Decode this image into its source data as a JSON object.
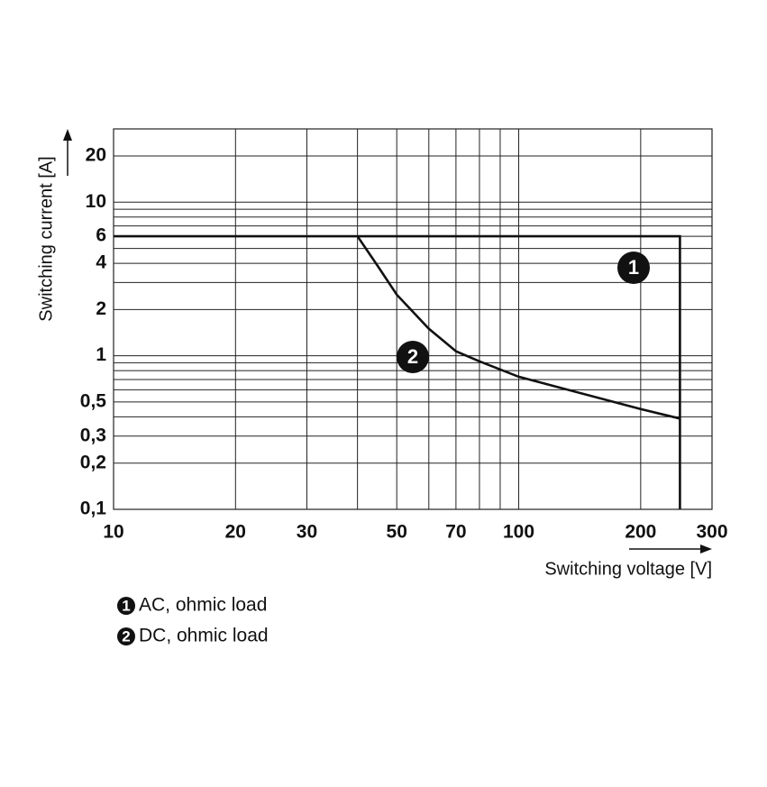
{
  "chart_data": {
    "type": "line",
    "xlabel": "Switching voltage [V]",
    "ylabel": "Switching current [A]",
    "xscale": "log",
    "yscale": "log",
    "xlim": [
      10,
      300
    ],
    "ylim": [
      0.1,
      30
    ],
    "xticks": [
      10,
      20,
      30,
      50,
      70,
      100,
      200,
      300
    ],
    "yticks": [
      {
        "value": 0.1,
        "label": "0,1"
      },
      {
        "value": 0.2,
        "label": "0,2"
      },
      {
        "value": 0.3,
        "label": "0,3"
      },
      {
        "value": 0.5,
        "label": "0,5"
      },
      1,
      2,
      4,
      6,
      10,
      20
    ],
    "xgrid": [
      40,
      60,
      80,
      90
    ],
    "ygrid": [
      0.4,
      0.6,
      0.7,
      0.8,
      0.9,
      3,
      5,
      7,
      8,
      9
    ],
    "grid": true,
    "series": [
      {
        "name": "AC, ohmic load",
        "label": "1",
        "color": "#111111",
        "x": [
          10,
          250,
          250
        ],
        "values": [
          6,
          6,
          0.1
        ]
      },
      {
        "name": "DC, ohmic load",
        "label": "2",
        "color": "#111111",
        "x": [
          40,
          45,
          50,
          60,
          70,
          80,
          100,
          200,
          250
        ],
        "values": [
          6,
          3.8,
          2.5,
          1.5,
          1.07,
          0.92,
          0.73,
          0.45,
          0.39
        ]
      }
    ]
  }
}
